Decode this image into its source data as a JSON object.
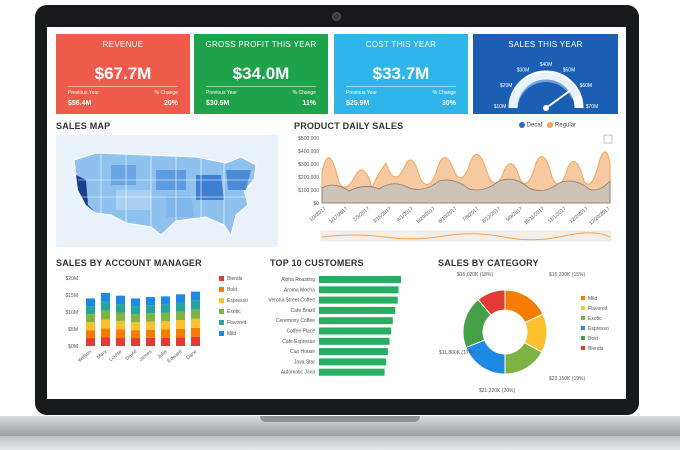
{
  "kpis": [
    {
      "title": "REVENUE",
      "value": "$67.7M",
      "prev_label": "Previous Year",
      "change_label": "% Change",
      "prev_value": "$56.4M",
      "change_value": "20%",
      "color": "#ef5b4b"
    },
    {
      "title": "GROSS PROFIT THIS YEAR",
      "value": "$34.0M",
      "prev_label": "Previous Year",
      "change_label": "% Change",
      "prev_value": "$30.5M",
      "change_value": "11%",
      "color": "#1fa34a"
    },
    {
      "title": "COST THIS YEAR",
      "value": "$33.7M",
      "prev_label": "Previous Year",
      "change_label": "% Change",
      "prev_value": "$25.9M",
      "change_value": "30%",
      "color": "#2fb5ea"
    },
    {
      "title": "SALES THIS YEAR",
      "color": "#1a5fb4",
      "gauge_labels": [
        "$10M",
        "$20M",
        "$30M",
        "$40M",
        "$50M",
        "$60M",
        "$70M"
      ],
      "gauge_fraction": 0.92
    }
  ],
  "sales_map": {
    "title": "SALES MAP"
  },
  "daily_sales": {
    "title": "PRODUCT DAILY SALES",
    "legend": [
      "Decaf",
      "Regular"
    ],
    "colors": {
      "decaf": "#2f6db5",
      "regular": "#f3a35b"
    },
    "y_ticks": [
      "$500,000",
      "$400,000",
      "$300,000",
      "$200,000",
      "$100,000",
      "$0"
    ],
    "x_ticks": [
      "1/3/2017",
      "1/17/2017",
      "2/3/2017",
      "3/15/2017",
      "4/1/2017",
      "5/20/2017",
      "6/10/2017",
      "7/8/2017",
      "8/12/2017",
      "9/9/2017",
      "10/11/2017",
      "11/1/2017",
      "12/2/2017",
      "12/20/2017"
    ]
  },
  "account_managers": {
    "title": "SALES BY ACCOUNT MANAGER",
    "y_ticks": [
      "$20M",
      "$15M",
      "$10M",
      "$5M",
      "$0M"
    ],
    "names": [
      "William",
      "Mary",
      "Louise",
      "David",
      "James",
      "Julia",
      "Edward",
      "Dane"
    ],
    "legend": [
      "Blends",
      "Bold",
      "Espresso",
      "Exotic",
      "Flavored",
      "Mild"
    ],
    "legend_colors": [
      "#e53935",
      "#f57c00",
      "#fbc02d",
      "#7cb342",
      "#26a69a",
      "#1e88e5"
    ]
  },
  "top_customers": {
    "title": "TOP 10 CUSTOMERS",
    "names": [
      "Alpha Roasting",
      "Aroma Mocha",
      "Verona Street Coffee",
      "Cafe Brazil",
      "Ceremony Coffee",
      "Coffee Place",
      "Cafe Espresso",
      "Cup House",
      "Java Star",
      "Automatic Java"
    ],
    "values": [
      100,
      97,
      96,
      93,
      90,
      88,
      86,
      84,
      82,
      80
    ]
  },
  "category": {
    "title": "SALES BY CATEGORY",
    "labels": [
      "$16,020K (18%)",
      "$16,330K (15%)",
      "$11,800K (17%)",
      "$23,150K (19%)",
      "$21,220K (20%)"
    ],
    "legend": [
      "Mild",
      "Flavored",
      "Exotic",
      "Espresso",
      "Bold",
      "Blends"
    ],
    "colors": [
      "#f57c00",
      "#fbc02d",
      "#7cb342",
      "#1e88e5",
      "#43a047",
      "#e53935"
    ],
    "shares": [
      0.18,
      0.15,
      0.17,
      0.19,
      0.2,
      0.11
    ]
  }
}
